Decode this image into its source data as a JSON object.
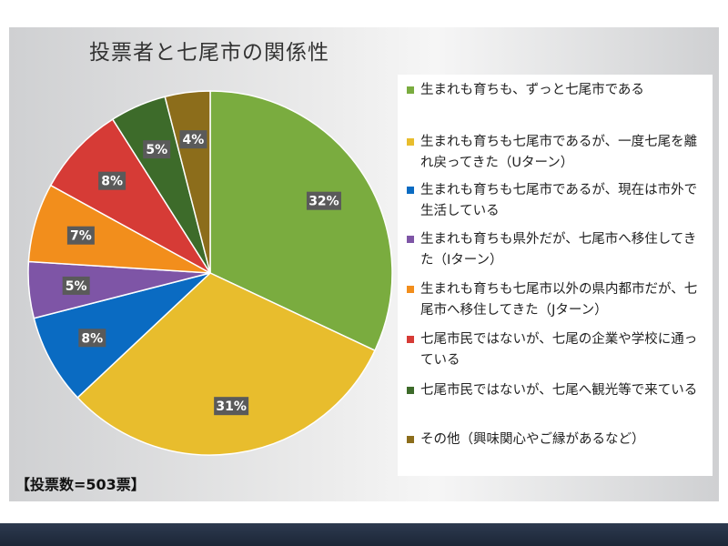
{
  "title": "投票者と七尾市の関係性",
  "footnote": "【投票数=503票】",
  "chart_data": {
    "type": "pie",
    "title": "投票者と七尾市の関係性",
    "start": "12 o'clock, clockwise",
    "legend_position": "right",
    "slices": [
      {
        "label": "生まれも育ちも、ずっと七尾市である",
        "value": 32,
        "display": "32%",
        "color": "#7aac3f"
      },
      {
        "label": "生まれも育ちも七尾市であるが、一度七尾を離れ戻ってきた（Uターン）",
        "value": 31,
        "display": "31%",
        "color": "#e8bd2d"
      },
      {
        "label": "生まれも育ちも七尾市であるが、現在は市外で生活している",
        "value": 8,
        "display": "8%",
        "color": "#0a6bc2"
      },
      {
        "label": "生まれも育ちも県外だが、七尾市へ移住してきた（Iターン）",
        "value": 5,
        "display": "5%",
        "color": "#7e55a6"
      },
      {
        "label": "生まれも育ちも七尾市以外の県内都市だが、七尾市へ移住してきた（Jターン）",
        "value": 7,
        "display": "7%",
        "color": "#f28e1c"
      },
      {
        "label": "七尾市民ではないが、七尾の企業や学校に通っている",
        "value": 8,
        "display": "8%",
        "color": "#d63b36"
      },
      {
        "label": "七尾市民ではないが、七尾へ観光等で来ている",
        "value": 5,
        "display": "5%",
        "color": "#3d6b2a"
      },
      {
        "label": "その他（興味関心やご縁があるなど）",
        "value": 4,
        "display": "4%",
        "color": "#8c6d1b"
      }
    ]
  }
}
